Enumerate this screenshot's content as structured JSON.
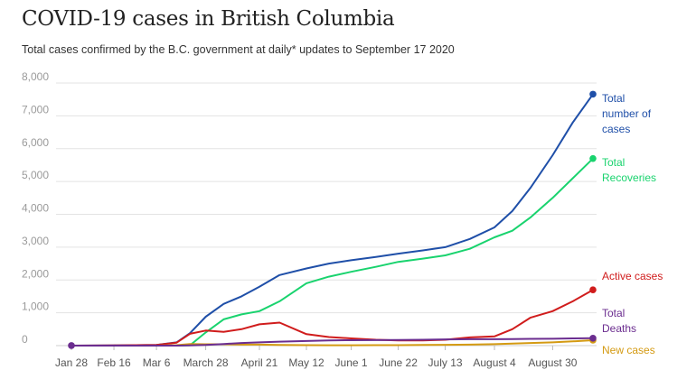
{
  "title": "COVID-19 cases in British Columbia",
  "subtitle": "Total cases confirmed by the B.C. government at daily* updates to September 17 2020",
  "chart_data": {
    "type": "line",
    "title": "COVID-19 cases in British Columbia",
    "subtitle": "Total cases confirmed by the B.C. government at daily* updates to September 17 2020",
    "xlabel": "",
    "ylabel": "",
    "ylim": [
      0,
      8000
    ],
    "grid": true,
    "legend": "direct labels at right end of lines",
    "y_ticks": [
      0,
      1000,
      2000,
      3000,
      4000,
      5000,
      6000,
      7000,
      8000
    ],
    "y_tick_labels": [
      "0",
      "1,000",
      "2,000",
      "3,000",
      "4,000",
      "5,000",
      "6,000",
      "7,000",
      "8,000"
    ],
    "x_ticks": [
      "Jan 28",
      "Feb 16",
      "Mar 6",
      "March 28",
      "April 21",
      "May 12",
      "June 1",
      "June 22",
      "July 13",
      "August 4",
      "August 30"
    ],
    "x": [
      "2020-01-28",
      "2020-02-16",
      "2020-03-06",
      "2020-03-15",
      "2020-03-21",
      "2020-03-28",
      "2020-04-05",
      "2020-04-13",
      "2020-04-21",
      "2020-04-30",
      "2020-05-12",
      "2020-05-22",
      "2020-06-01",
      "2020-06-12",
      "2020-06-22",
      "2020-07-03",
      "2020-07-13",
      "2020-07-24",
      "2020-08-04",
      "2020-08-12",
      "2020-08-20",
      "2020-08-30",
      "2020-09-08",
      "2020-09-17"
    ],
    "series": [
      {
        "name": "Total number of cases",
        "label": [
          "Total",
          "number of",
          "cases"
        ],
        "color": "#1f4fa8",
        "values": [
          1,
          7,
          21,
          100,
          380,
          880,
          1270,
          1500,
          1795,
          2150,
          2350,
          2500,
          2600,
          2700,
          2800,
          2900,
          3000,
          3250,
          3600,
          4100,
          4800,
          5800,
          6800,
          7660
        ]
      },
      {
        "name": "Total Recoveries",
        "label": [
          "Total",
          "Recoveries"
        ],
        "color": "#19d36e",
        "values": [
          0,
          0,
          0,
          0,
          10,
          400,
          800,
          950,
          1050,
          1350,
          1900,
          2100,
          2250,
          2400,
          2550,
          2650,
          2750,
          2950,
          3300,
          3500,
          3900,
          4500,
          5100,
          5700
        ]
      },
      {
        "name": "Active cases",
        "label": [
          "Active cases"
        ],
        "color": "#d01c1c",
        "values": [
          1,
          7,
          21,
          90,
          360,
          460,
          420,
          500,
          650,
          700,
          350,
          260,
          220,
          180,
          160,
          160,
          180,
          250,
          280,
          500,
          850,
          1050,
          1350,
          1700
        ]
      },
      {
        "name": "Total Deaths",
        "label": [
          "Total",
          "Deaths"
        ],
        "color": "#6b2d8f",
        "values": [
          0,
          0,
          0,
          1,
          8,
          20,
          50,
          80,
          100,
          120,
          140,
          160,
          165,
          168,
          170,
          180,
          190,
          195,
          195,
          200,
          205,
          210,
          220,
          225
        ]
      },
      {
        "name": "New cases",
        "label": [
          "New cases"
        ],
        "color": "#d49a12",
        "values": [
          0,
          0,
          1,
          15,
          50,
          40,
          40,
          30,
          30,
          20,
          15,
          10,
          10,
          15,
          15,
          20,
          25,
          30,
          45,
          60,
          80,
          100,
          130,
          165
        ]
      }
    ]
  }
}
